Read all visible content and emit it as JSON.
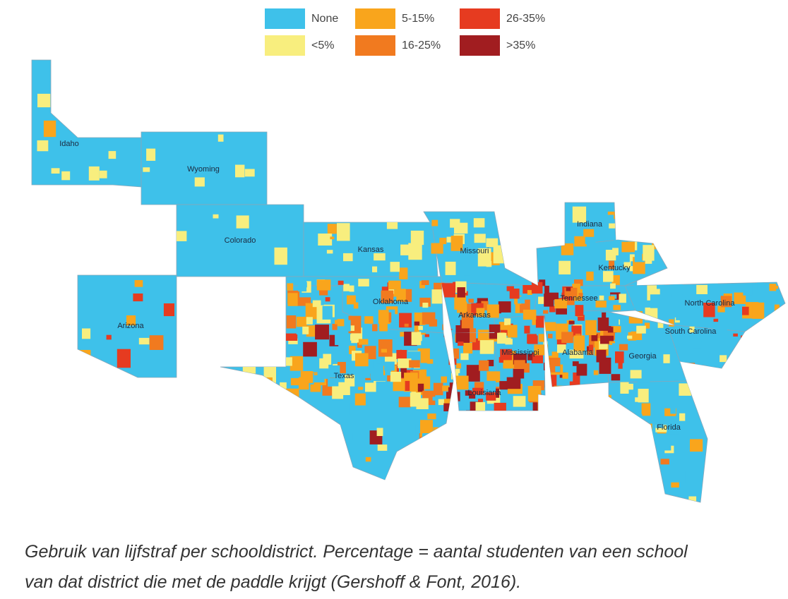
{
  "legend": [
    {
      "label": "None",
      "color": "#3ec1ea"
    },
    {
      "label": "<5%",
      "color": "#f8ee7e"
    },
    {
      "label": "5-15%",
      "color": "#f9a51c"
    },
    {
      "label": "16-25%",
      "color": "#f17a1f"
    },
    {
      "label": "26-35%",
      "color": "#e63b20"
    },
    {
      "label": ">35%",
      "color": "#a11d20"
    }
  ],
  "states": [
    {
      "label": "Idaho"
    },
    {
      "label": "Wyoming"
    },
    {
      "label": "Colorado"
    },
    {
      "label": "Kansas"
    },
    {
      "label": "Missouri"
    },
    {
      "label": "Indiana"
    },
    {
      "label": "Kentucky"
    },
    {
      "label": "Tennessee"
    },
    {
      "label": "North Carolina"
    },
    {
      "label": "Oklahoma"
    },
    {
      "label": "Arkansas"
    },
    {
      "label": "Arizona"
    },
    {
      "label": "South Carolina"
    },
    {
      "label": "Mississippi"
    },
    {
      "label": "Alabama"
    },
    {
      "label": "Georgia"
    },
    {
      "label": "Texas"
    },
    {
      "label": "Louisiana"
    },
    {
      "label": "Florida"
    }
  ],
  "caption": [
    "Gebruik van lijfstraf per schooldistrict. Percentage = aantal studenten van een school",
    "van dat district die met de paddle krijgt (Gershoff & Font, 2016)."
  ]
}
